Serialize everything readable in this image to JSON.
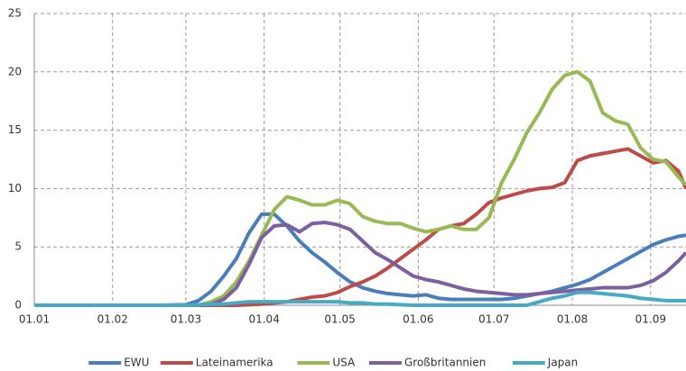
{
  "chart_data": {
    "type": "line",
    "x": [
      0,
      10,
      20,
      30,
      40,
      50,
      60,
      65,
      70,
      75,
      80,
      85,
      90,
      95,
      100,
      105,
      110,
      115,
      120,
      125,
      130,
      135,
      140,
      145,
      150,
      155,
      160,
      165,
      170,
      175,
      180,
      185,
      190,
      195,
      200,
      205,
      210,
      215,
      220,
      225,
      230,
      235,
      240,
      245,
      250,
      255,
      258
    ],
    "xlim": [
      0,
      258
    ],
    "xticks": [
      {
        "value": 0,
        "label": "01.01"
      },
      {
        "value": 31,
        "label": "01.02"
      },
      {
        "value": 60,
        "label": "01.03"
      },
      {
        "value": 91,
        "label": "01.04"
      },
      {
        "value": 121,
        "label": "01.05"
      },
      {
        "value": 152,
        "label": "01.06"
      },
      {
        "value": 182,
        "label": "01.07"
      },
      {
        "value": 213,
        "label": "01.08"
      },
      {
        "value": 244,
        "label": "01.09"
      }
    ],
    "ylim": [
      0,
      25
    ],
    "yticks": [
      0,
      5,
      10,
      15,
      20,
      25
    ],
    "grid": true,
    "series": [
      {
        "name": "EWU",
        "color": "#4a7ebb",
        "values": [
          0,
          0,
          0,
          0,
          0,
          0,
          0.05,
          0.4,
          1.2,
          2.5,
          4,
          6.2,
          7.8,
          7.8,
          6.8,
          5.5,
          4.5,
          3.7,
          2.8,
          2,
          1.5,
          1.2,
          1,
          0.9,
          0.8,
          0.9,
          0.6,
          0.5,
          0.5,
          0.5,
          0.5,
          0.5,
          0.6,
          0.8,
          1,
          1.2,
          1.5,
          1.8,
          2.2,
          2.8,
          3.4,
          4,
          4.6,
          5.2,
          5.6,
          5.9,
          6
        ]
      },
      {
        "name": "Lateinamerika",
        "color": "#be4b48",
        "values": [
          0,
          0,
          0,
          0,
          0,
          0,
          0,
          0,
          0,
          0,
          0,
          0.05,
          0.1,
          0.2,
          0.3,
          0.5,
          0.7,
          0.8,
          1.1,
          1.6,
          2,
          2.5,
          3.2,
          4,
          4.8,
          5.6,
          6.5,
          6.8,
          7,
          7.8,
          8.8,
          9.2,
          9.5,
          9.8,
          10,
          10.1,
          10.5,
          12.4,
          12.8,
          13,
          13.2,
          13.4,
          12.8,
          12.2,
          12.4,
          11.5,
          10
        ]
      },
      {
        "name": "USA",
        "color": "#98b954",
        "values": [
          0,
          0,
          0,
          0,
          0,
          0,
          0,
          0,
          0.3,
          0.8,
          2,
          3.8,
          6,
          8.2,
          9.3,
          9,
          8.6,
          8.6,
          9,
          8.7,
          7.6,
          7.2,
          7,
          7,
          6.6,
          6.3,
          6.5,
          6.8,
          6.5,
          6.5,
          7.5,
          10.5,
          12.5,
          14.8,
          16.5,
          18.5,
          19.7,
          20,
          19.2,
          16.5,
          15.8,
          15.5,
          13.5,
          12.5,
          12.3,
          11,
          10.3
        ]
      },
      {
        "name": "Großbritannien",
        "color": "#7d5fa0",
        "values": [
          0,
          0,
          0,
          0,
          0,
          0,
          0,
          0,
          0.1,
          0.5,
          1.5,
          3.5,
          5.8,
          6.8,
          6.9,
          6.3,
          7,
          7.1,
          6.9,
          6.5,
          5.5,
          4.5,
          3.9,
          3.2,
          2.5,
          2.2,
          2,
          1.7,
          1.4,
          1.2,
          1.1,
          1,
          0.9,
          0.9,
          1,
          1.1,
          1.2,
          1.3,
          1.4,
          1.5,
          1.5,
          1.5,
          1.7,
          2.1,
          2.8,
          3.8,
          4.5
        ]
      },
      {
        "name": "Japan",
        "color": "#46aac5",
        "values": [
          0,
          0,
          0,
          0,
          0,
          0,
          0,
          0.05,
          0.1,
          0.1,
          0.2,
          0.3,
          0.3,
          0.3,
          0.3,
          0.3,
          0.3,
          0.3,
          0.3,
          0.2,
          0.2,
          0.1,
          0.1,
          0.05,
          0,
          0,
          0,
          0,
          0,
          0,
          0,
          0,
          0,
          0,
          0.3,
          0.6,
          0.8,
          1.1,
          1.1,
          1,
          0.9,
          0.8,
          0.6,
          0.5,
          0.4,
          0.4,
          0.4
        ]
      }
    ]
  }
}
